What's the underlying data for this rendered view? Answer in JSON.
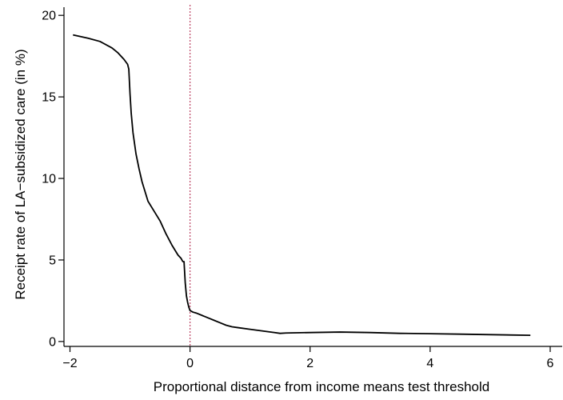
{
  "chart_data": {
    "type": "line",
    "title": "",
    "xlabel": "Proportional distance from income means test threshold",
    "ylabel": "Receipt rate of LA−subsidized care (in %)",
    "xlim": [
      -2.1,
      6.2
    ],
    "ylim": [
      -0.3,
      20.5
    ],
    "x_ticks": [
      -2,
      0,
      2,
      4,
      6
    ],
    "x_tick_labels": [
      "−2",
      "0",
      "2",
      "4",
      "6"
    ],
    "y_ticks": [
      0,
      5,
      10,
      15,
      20
    ],
    "y_tick_labels": [
      "0",
      "5",
      "10",
      "15",
      "20"
    ],
    "grid": false,
    "reference_line": {
      "x": 0,
      "color": "#c0506e",
      "style": "dotted"
    },
    "series": [
      {
        "color": "#000000",
        "x": [
          -1.95,
          -1.7,
          -1.5,
          -1.3,
          -1.2,
          -1.1,
          -1.04,
          -1.02,
          -1.0,
          -0.98,
          -0.95,
          -0.9,
          -0.85,
          -0.8,
          -0.75,
          -0.7,
          -0.6,
          -0.5,
          -0.4,
          -0.3,
          -0.2,
          -0.15,
          -0.12,
          -0.1,
          -0.08,
          -0.06,
          -0.04,
          -0.02,
          0.0,
          0.05,
          0.1,
          0.2,
          0.3,
          0.4,
          0.5,
          0.6,
          0.7,
          0.8,
          1.0,
          1.2,
          1.4,
          1.5,
          1.6,
          2.0,
          2.5,
          3.0,
          3.5,
          4.0,
          4.5,
          5.0,
          5.67
        ],
        "y": [
          18.8,
          18.6,
          18.4,
          18.0,
          17.7,
          17.3,
          17.0,
          16.7,
          15.2,
          14.0,
          12.8,
          11.5,
          10.6,
          9.8,
          9.2,
          8.6,
          8.0,
          7.4,
          6.6,
          5.9,
          5.3,
          5.1,
          4.9,
          4.9,
          3.6,
          2.8,
          2.4,
          2.1,
          1.9,
          1.8,
          1.75,
          1.6,
          1.45,
          1.3,
          1.15,
          1.0,
          0.9,
          0.85,
          0.75,
          0.65,
          0.55,
          0.5,
          0.52,
          0.55,
          0.58,
          0.55,
          0.5,
          0.48,
          0.45,
          0.42,
          0.38
        ]
      }
    ]
  }
}
